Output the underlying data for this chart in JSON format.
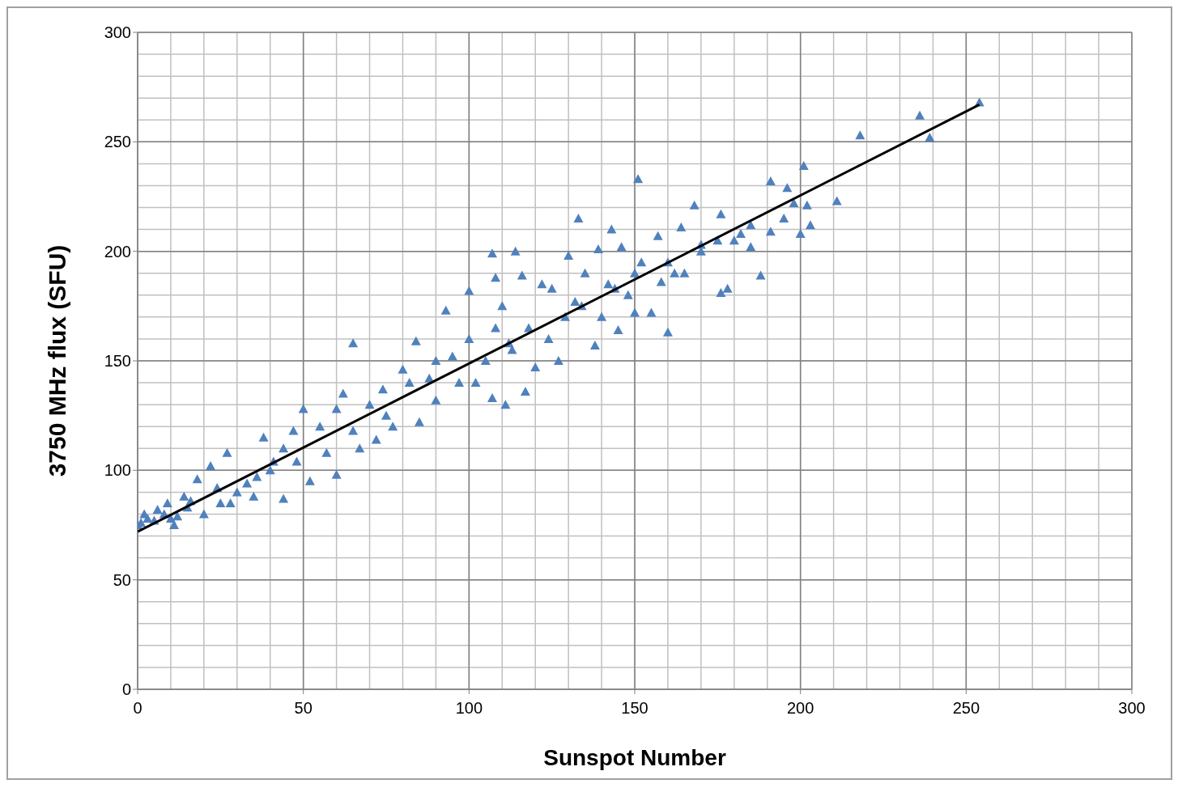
{
  "chart_data": {
    "type": "scatter",
    "xlabel": "Sunspot Number",
    "ylabel": "3750 MHz flux (SFU)",
    "xlim": [
      0,
      300
    ],
    "xticks": [
      0,
      50,
      100,
      150,
      200,
      250,
      300
    ],
    "ylim": [
      0,
      300
    ],
    "yticks": [
      0,
      50,
      100,
      150,
      200,
      250,
      300
    ],
    "grid": true,
    "legend": false,
    "marker": "triangle",
    "series": [
      {
        "color": "#4f81bd",
        "x": [
          254,
          236,
          239,
          218,
          151,
          201,
          191,
          196,
          211,
          202,
          203,
          200,
          191,
          188,
          185,
          178,
          176,
          168,
          176,
          160,
          155,
          145,
          133,
          143,
          107,
          114,
          130,
          116,
          122,
          100,
          117,
          65,
          84,
          93,
          108,
          110,
          111,
          107,
          120,
          127,
          138,
          150,
          165,
          170,
          180,
          157,
          164,
          146,
          139,
          125,
          132,
          140,
          148,
          95,
          88,
          80,
          74,
          70,
          62,
          60,
          55,
          50,
          47,
          44,
          44,
          38,
          41,
          36,
          33,
          30,
          27,
          22,
          18,
          25,
          20,
          15,
          12,
          10,
          8,
          5,
          3,
          1,
          0,
          2,
          6,
          14,
          52,
          60,
          67,
          72,
          77,
          85,
          90,
          97,
          102,
          105,
          112,
          118,
          124,
          129,
          134,
          100,
          90,
          82,
          75,
          65,
          57,
          48,
          40,
          35,
          28,
          24,
          16,
          9,
          11,
          108,
          113,
          135,
          142,
          152,
          160,
          170,
          175,
          185,
          195,
          198,
          182,
          162,
          150,
          144,
          158
        ],
        "values": [
          268,
          262,
          252,
          253,
          233,
          239,
          232,
          229,
          223,
          221,
          212,
          208,
          209,
          189,
          202,
          183,
          181,
          221,
          217,
          163,
          172,
          164,
          215,
          210,
          199,
          200,
          198,
          189,
          185,
          182,
          136,
          158,
          159,
          173,
          188,
          175,
          130,
          133,
          147,
          150,
          157,
          172,
          190,
          203,
          205,
          207,
          211,
          202,
          201,
          183,
          177,
          170,
          180,
          152,
          142,
          146,
          137,
          130,
          135,
          128,
          120,
          128,
          118,
          110,
          87,
          115,
          104,
          97,
          94,
          90,
          108,
          102,
          96,
          85,
          80,
          83,
          79,
          78,
          80,
          77,
          78,
          76,
          75,
          80,
          82,
          88,
          95,
          98,
          110,
          114,
          120,
          122,
          132,
          140,
          140,
          150,
          158,
          165,
          160,
          170,
          175,
          160,
          150,
          140,
          125,
          118,
          108,
          104,
          100,
          88,
          85,
          92,
          86,
          85,
          75,
          165,
          155,
          190,
          185,
          195,
          195,
          200,
          205,
          212,
          215,
          222,
          208,
          190,
          190,
          183,
          186
        ]
      },
      {
        "type": "line",
        "color": "#000000",
        "marker": "none",
        "x": [
          0,
          254
        ],
        "values": [
          72,
          267
        ]
      }
    ]
  }
}
